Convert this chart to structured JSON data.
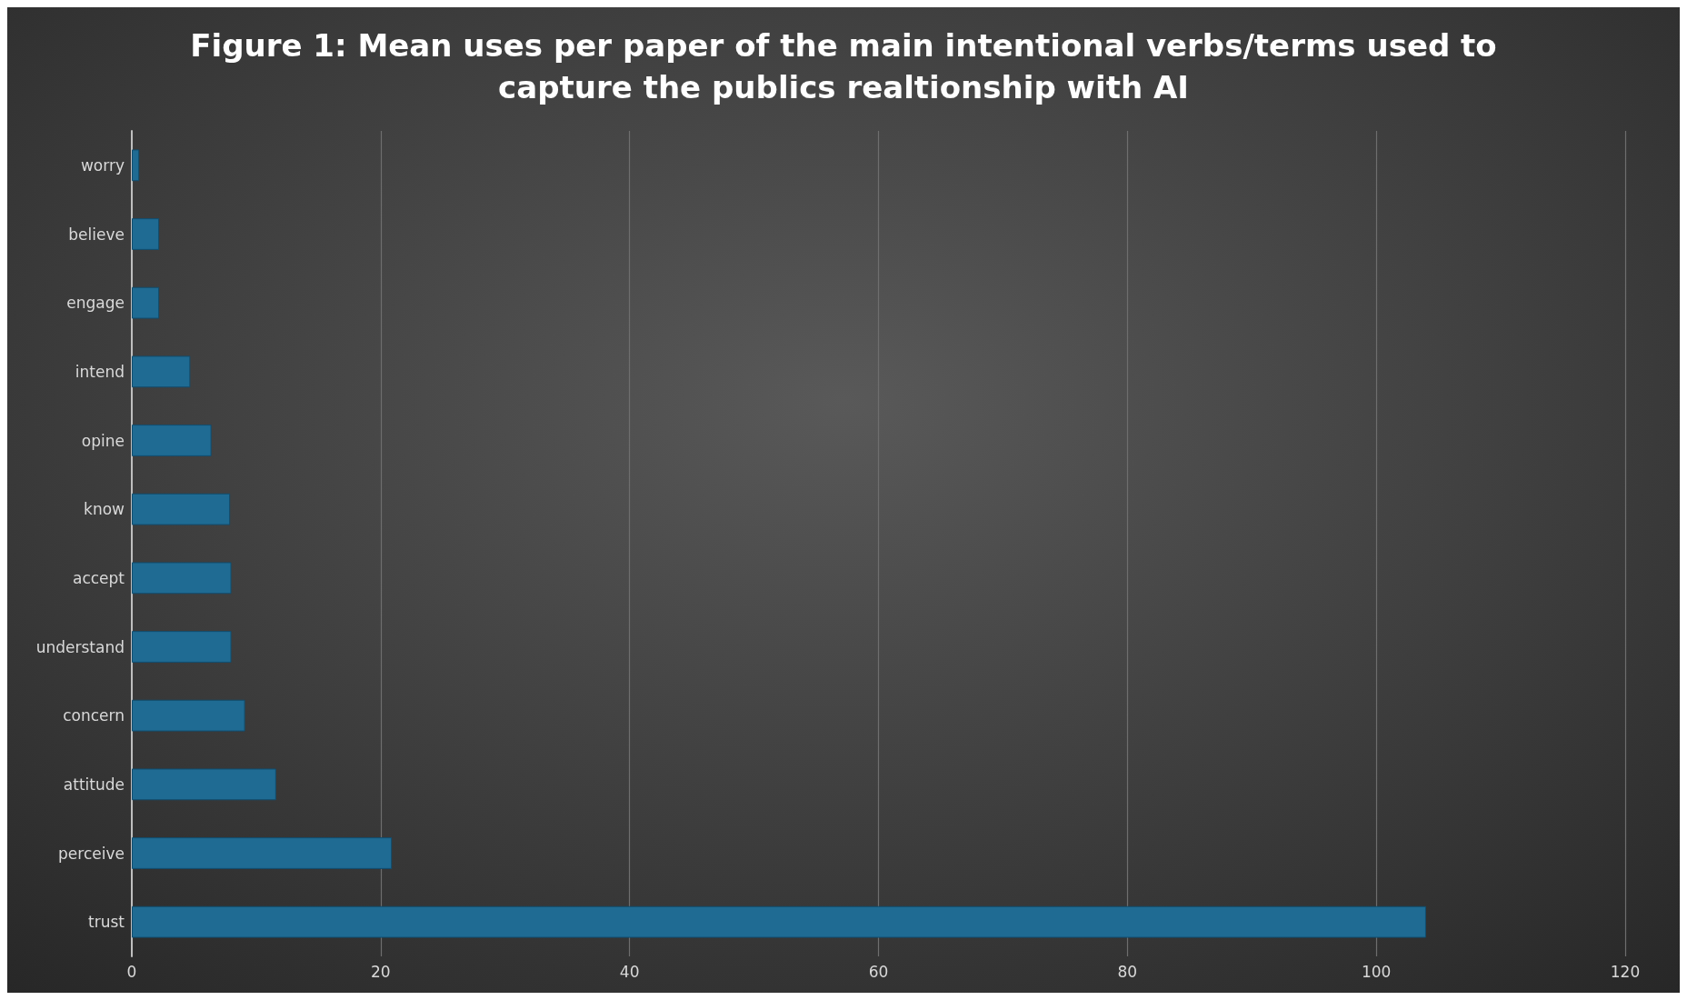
{
  "chart_data": {
    "type": "bar",
    "orientation": "horizontal",
    "title": "Figure 1: Mean uses per paper of the main intentional verbs/terms used to\ncapture the publics realtionship with AI",
    "categories": [
      "worry",
      "believe",
      "engage",
      "intend",
      "opine",
      "know",
      "accept",
      "understand",
      "concern",
      "attitude",
      "perceive",
      "trust"
    ],
    "values": [
      0.6,
      2.2,
      2.2,
      4.7,
      6.4,
      7.9,
      8.0,
      8.0,
      9.1,
      11.6,
      20.9,
      104.0
    ],
    "color": "#1f6b93",
    "xlim": [
      0,
      120
    ],
    "xticks": [
      0,
      20,
      40,
      60,
      80,
      100,
      120
    ],
    "grid": "x"
  }
}
